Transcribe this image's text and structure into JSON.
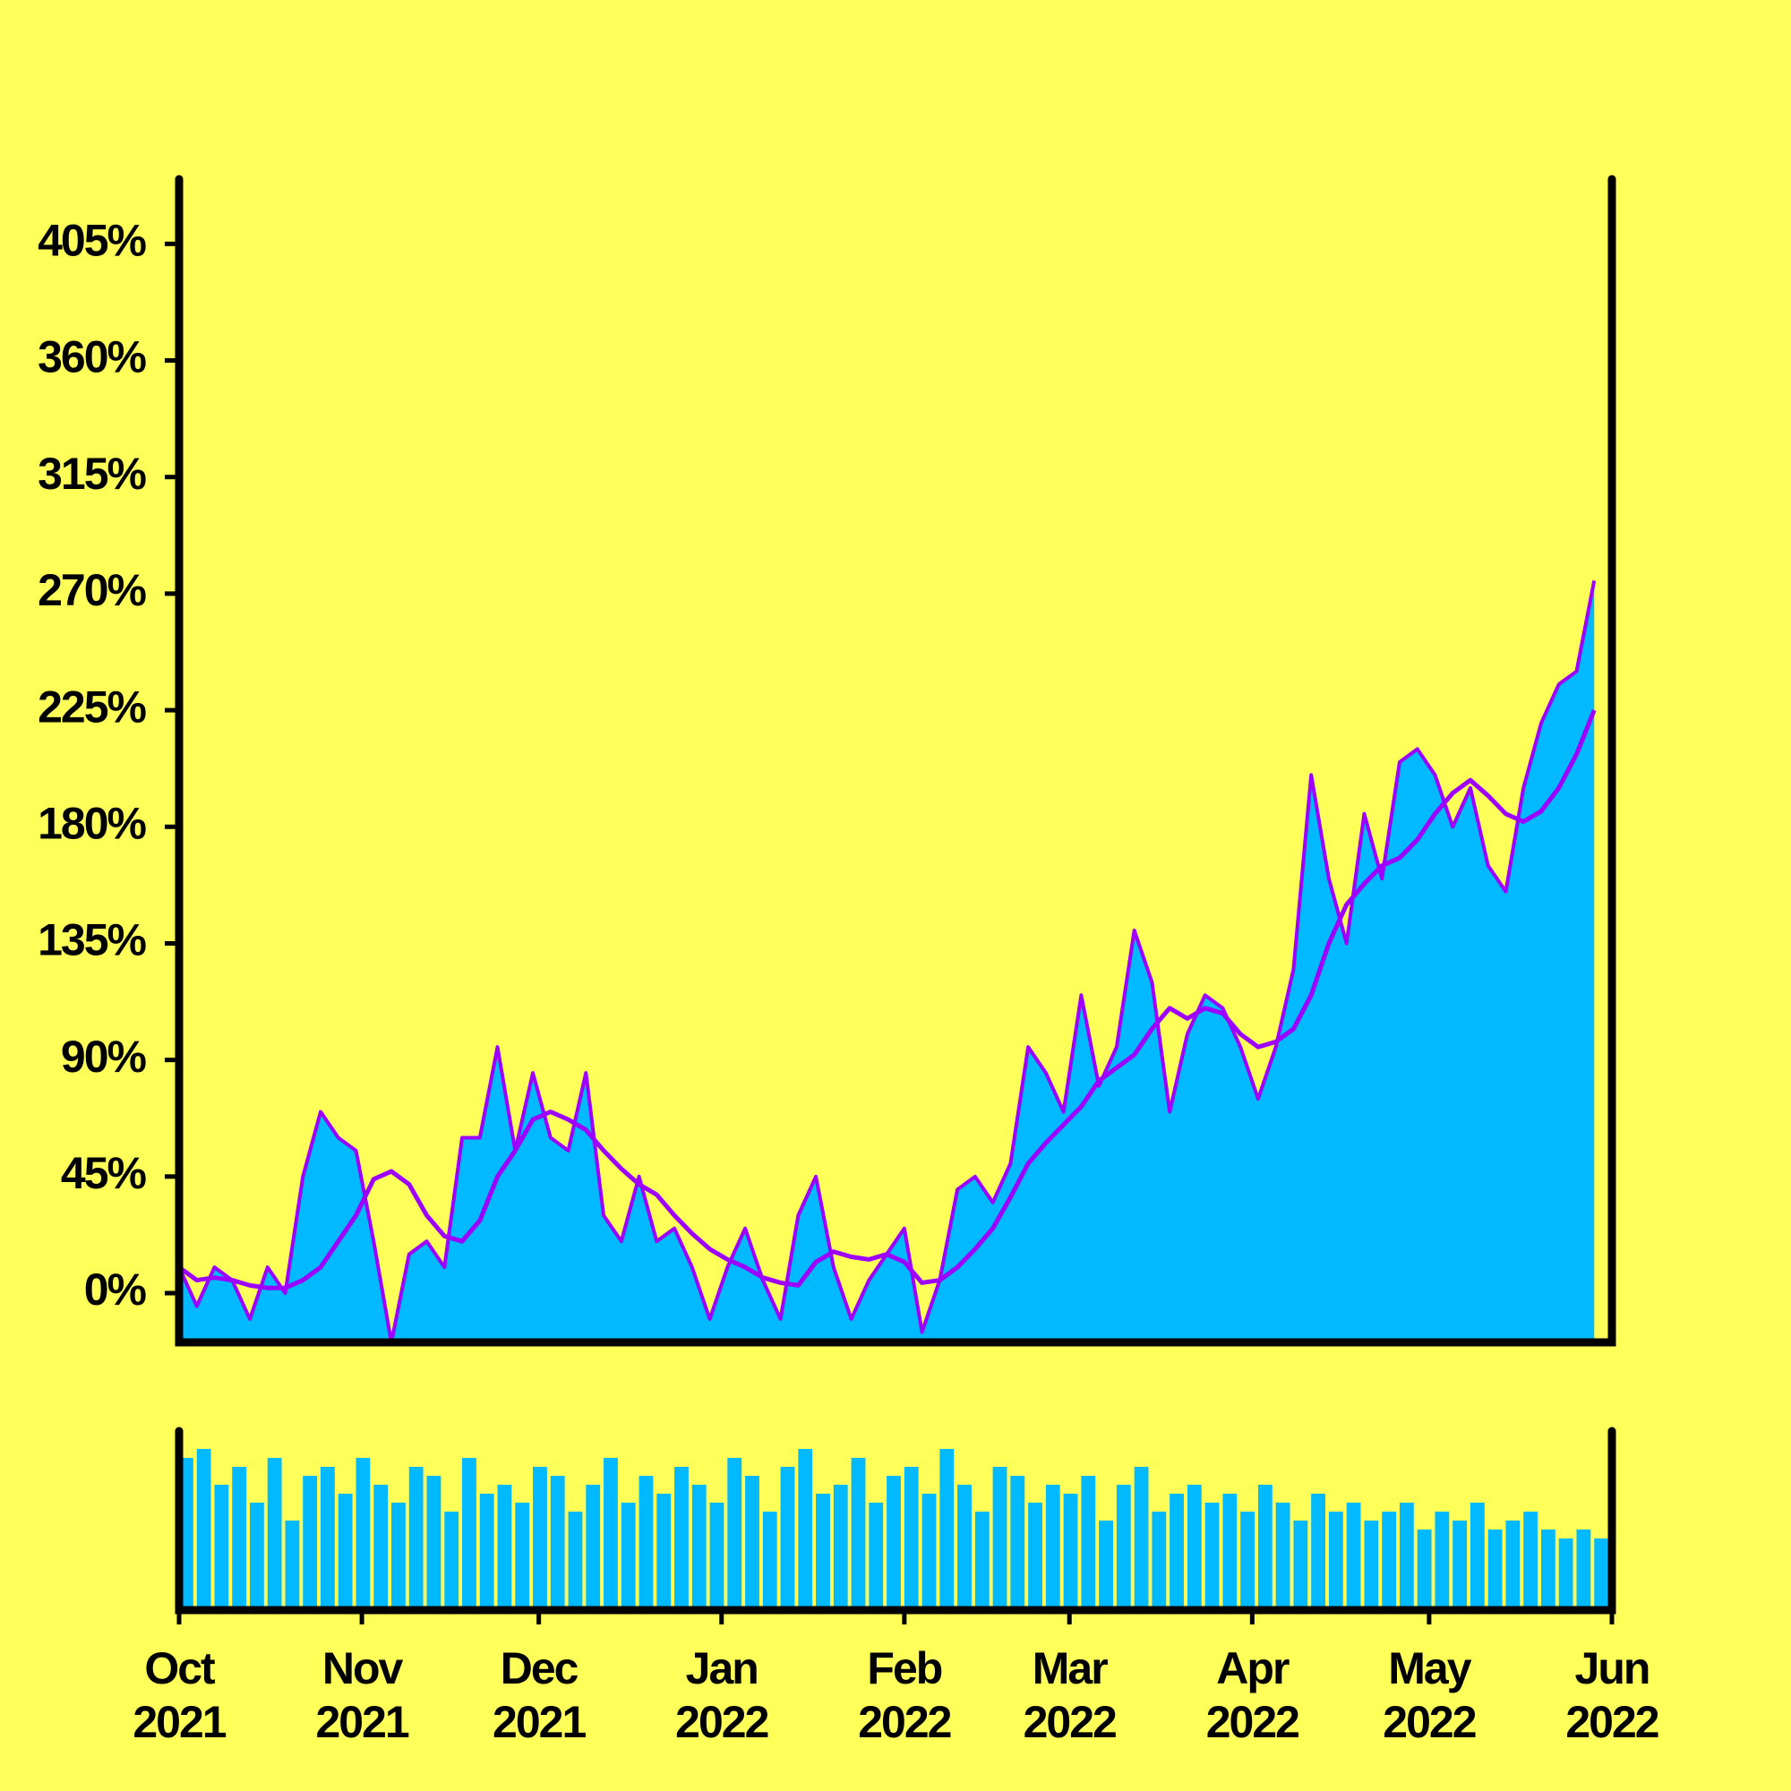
{
  "chart_data": [
    {
      "type": "area",
      "x": [
        0,
        3,
        6,
        9,
        12,
        15,
        18,
        21,
        24,
        27,
        30,
        33,
        36,
        39,
        42,
        45,
        48,
        51,
        54,
        57,
        60,
        63,
        66,
        69,
        72,
        75,
        78,
        81,
        84,
        87,
        90,
        93,
        96,
        99,
        102,
        105,
        108,
        111,
        114,
        117,
        120,
        123,
        126,
        129,
        132,
        135,
        138,
        141,
        144,
        147,
        150,
        153,
        156,
        159,
        162,
        165,
        168,
        171,
        174,
        177,
        180,
        183,
        186,
        189,
        192,
        195,
        198,
        201,
        204,
        207,
        210,
        213,
        216,
        219,
        222,
        225,
        228,
        231,
        234,
        237,
        240
      ],
      "series": [
        {
          "type": "area",
          "color": "#00b9ff",
          "line_color": "#9d00ff",
          "values": [
            10,
            -5,
            10,
            5,
            -10,
            10,
            0,
            45,
            70,
            60,
            55,
            20,
            -19,
            15,
            20,
            10,
            60,
            60,
            95,
            55,
            85,
            60,
            55,
            85,
            30,
            20,
            45,
            20,
            25,
            10,
            -10,
            10,
            25,
            5,
            -10,
            30,
            45,
            10,
            -10,
            5,
            15,
            25,
            -15,
            5,
            40,
            45,
            35,
            50,
            95,
            85,
            70,
            115,
            80,
            95,
            140,
            120,
            70,
            100,
            115,
            110,
            95,
            75,
            95,
            125,
            200,
            160,
            135,
            185,
            160,
            205,
            210,
            200,
            180,
            195,
            165,
            155,
            195,
            220,
            235,
            240,
            275
          ]
        },
        {
          "type": "line",
          "color": "#9d00ff",
          "values": [
            10,
            5,
            6,
            5,
            3,
            2,
            2,
            5,
            10,
            20,
            30,
            44,
            47,
            42,
            30,
            22,
            20,
            28,
            45,
            55,
            67,
            70,
            67,
            63,
            55,
            48,
            42,
            38,
            30,
            23,
            17,
            13,
            10,
            6,
            4,
            3,
            12,
            16,
            14,
            13,
            15,
            12,
            4,
            5,
            10,
            17,
            25,
            37,
            50,
            58,
            65,
            72,
            82,
            87,
            92,
            102,
            110,
            106,
            110,
            108,
            100,
            95,
            97,
            102,
            115,
            135,
            150,
            158,
            165,
            168,
            175,
            185,
            193,
            198,
            192,
            185,
            182,
            186,
            195,
            208,
            225
          ]
        }
      ],
      "xlim": [
        0,
        243
      ],
      "ylim": [
        -19,
        430
      ],
      "yticks": [
        {
          "value": 0,
          "label": "0%"
        },
        {
          "value": 45,
          "label": "45%"
        },
        {
          "value": 90,
          "label": "90%"
        },
        {
          "value": 135,
          "label": "135%"
        },
        {
          "value": 180,
          "label": "180%"
        },
        {
          "value": 225,
          "label": "225%"
        },
        {
          "value": 270,
          "label": "270%"
        },
        {
          "value": 315,
          "label": "315%"
        },
        {
          "value": 360,
          "label": "360%"
        },
        {
          "value": 405,
          "label": "405%"
        }
      ]
    },
    {
      "type": "bar",
      "color": "#00b9ff",
      "x": [
        0,
        3,
        6,
        9,
        12,
        15,
        18,
        21,
        24,
        27,
        30,
        33,
        36,
        39,
        42,
        45,
        48,
        51,
        54,
        57,
        60,
        63,
        66,
        69,
        72,
        75,
        78,
        81,
        84,
        87,
        90,
        93,
        96,
        99,
        102,
        105,
        108,
        111,
        114,
        117,
        120,
        123,
        126,
        129,
        132,
        135,
        138,
        141,
        144,
        147,
        150,
        153,
        156,
        159,
        162,
        165,
        168,
        171,
        174,
        177,
        180,
        183,
        186,
        189,
        192,
        195,
        198,
        201,
        204,
        207,
        210,
        213,
        216,
        219,
        222,
        225,
        228,
        231,
        234,
        237,
        240
      ],
      "values": [
        85,
        90,
        70,
        80,
        60,
        85,
        50,
        75,
        80,
        65,
        85,
        70,
        60,
        80,
        75,
        55,
        85,
        65,
        70,
        60,
        80,
        75,
        55,
        70,
        85,
        60,
        75,
        65,
        80,
        70,
        60,
        85,
        75,
        55,
        80,
        90,
        65,
        70,
        85,
        60,
        75,
        80,
        65,
        90,
        70,
        55,
        80,
        75,
        60,
        70,
        65,
        75,
        50,
        70,
        80,
        55,
        65,
        70,
        60,
        65,
        55,
        70,
        60,
        50,
        65,
        55,
        60,
        50,
        55,
        60,
        45,
        55,
        50,
        60,
        45,
        50,
        55,
        45,
        40,
        45,
        40
      ],
      "xlim": [
        0,
        243
      ],
      "ylim": [
        0,
        100
      ],
      "xticks": [
        {
          "value": 0,
          "label": "Oct 2021"
        },
        {
          "value": 31,
          "label": "Nov 2021"
        },
        {
          "value": 61,
          "label": "Dec 2021"
        },
        {
          "value": 92,
          "label": "Jan 2022"
        },
        {
          "value": 123,
          "label": "Feb 2022"
        },
        {
          "value": 151,
          "label": "Mar 2022"
        },
        {
          "value": 182,
          "label": "Apr 2022"
        },
        {
          "value": 212,
          "label": "May 2022"
        },
        {
          "value": 243,
          "label": "Jun 2022"
        }
      ]
    }
  ]
}
